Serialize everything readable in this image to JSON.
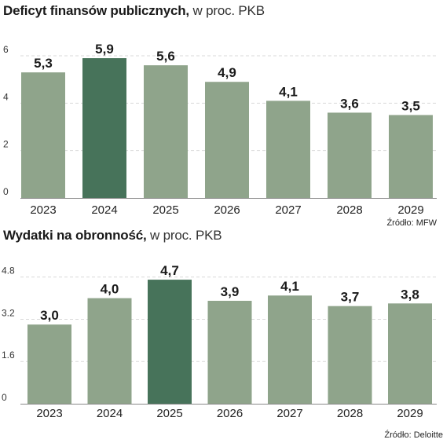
{
  "colors": {
    "bar": "#8fa48b",
    "highlight": "#47735a",
    "grid": "#d9d9d9",
    "axis": "#888888",
    "text": "#1a1a1a"
  },
  "chart_data": [
    {
      "type": "bar",
      "title": "Deficyt finansów publicznych,",
      "subtitle": "w proc. PKB",
      "categories": [
        "2023",
        "2024",
        "2025",
        "2026",
        "2027",
        "2028",
        "2029"
      ],
      "values": [
        5.3,
        5.9,
        5.6,
        4.9,
        4.1,
        3.6,
        3.5
      ],
      "labels": [
        "5,3",
        "5,9",
        "5,6",
        "4,9",
        "4,1",
        "3,6",
        "3,5"
      ],
      "highlight_index": 1,
      "ylim": [
        0,
        6.3
      ],
      "yticks": [
        0,
        2,
        4,
        6
      ],
      "ytick_labels": [
        "0",
        "2",
        "4",
        "6"
      ],
      "grid": true,
      "source": "Źródło: MFW"
    },
    {
      "type": "bar",
      "title": "Wydatki na obronność,",
      "subtitle": "w proc. PKB",
      "categories": [
        "2023",
        "2024",
        "2025",
        "2026",
        "2027",
        "2028",
        "2029"
      ],
      "values": [
        3.0,
        4.0,
        4.7,
        3.9,
        4.1,
        3.7,
        3.8
      ],
      "labels": [
        "3,0",
        "4,0",
        "4,7",
        "3,9",
        "4,1",
        "3,7",
        "3,8"
      ],
      "highlight_index": 2,
      "ylim": [
        0,
        5.0
      ],
      "yticks": [
        0,
        1.6,
        3.2,
        4.8
      ],
      "ytick_labels": [
        "0",
        "1.6",
        "3.2",
        "4.8"
      ],
      "grid": true,
      "source": "Źródło: Deloitte"
    }
  ]
}
